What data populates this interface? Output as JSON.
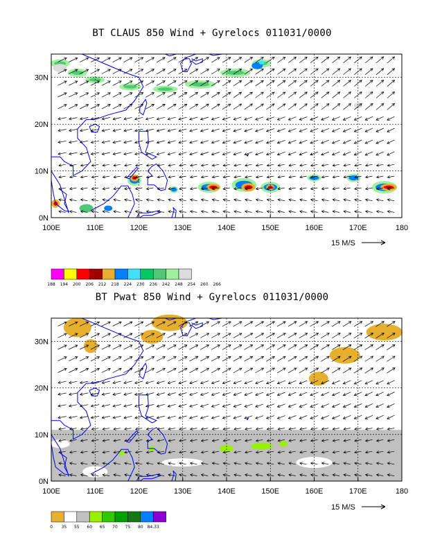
{
  "panels": [
    {
      "title": "BT CLAUS 850 Wind + Gyrelocs 011031/0000",
      "lat_labels": [
        "30N",
        "20N",
        "10N",
        "0N"
      ],
      "lon_labels": [
        "100E",
        "110E",
        "120E",
        "130E",
        "140E",
        "150E",
        "160E",
        "170E",
        "180"
      ],
      "ref_vector_label": "15 M/S",
      "colorbar": {
        "labels": [
          "188",
          "194",
          "200",
          "206",
          "212",
          "218",
          "224",
          "230",
          "236",
          "242",
          "248",
          "254",
          "260",
          "266"
        ],
        "colors": [
          "#ff00ff",
          "#ffff00",
          "#ff0000",
          "#a00000",
          "#e6af2e",
          "#0080ff",
          "#40e0ff",
          "#00c864",
          "#50c878",
          "#a0f0a0",
          "#dcdcdc"
        ],
        "label_text": [
          "188",
          "194",
          "200",
          "206",
          "212",
          "218",
          "224",
          "230",
          "236",
          "242",
          "248",
          "254",
          "260",
          "266"
        ]
      }
    },
    {
      "title": "BT Pwat 850 Wind + Gyrelocs 011031/0000",
      "lat_labels": [
        "30N",
        "20N",
        "10N",
        "0N"
      ],
      "lon_labels": [
        "100E",
        "110E",
        "120E",
        "130E",
        "140E",
        "150E",
        "160E",
        "170E",
        "180"
      ],
      "ref_vector_label": "15 M/S",
      "colorbar": {
        "colors": [
          "#e6af2e",
          "#ffffff",
          "#c0c0c0",
          "#96f000",
          "#32c800",
          "#00a000",
          "#147814",
          "#0080ff",
          "#8c00d2"
        ],
        "label_text": [
          "0",
          "35",
          "55",
          "60",
          "65",
          "70",
          "75",
          "80",
          "84.33"
        ]
      }
    }
  ],
  "colors": {
    "coast": "#0000ff",
    "grid": "#000000",
    "arrow": "#000000"
  }
}
